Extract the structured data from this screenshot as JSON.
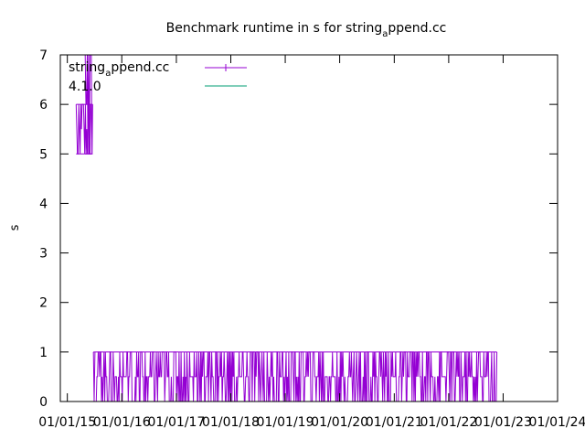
{
  "chart_data": {
    "type": "line",
    "title": "Benchmark runtime in s for string_append.cc",
    "ylabel": "s",
    "xlabel": "",
    "ylim": [
      0,
      7
    ],
    "xlim": [
      "2014-11-15",
      "2024-01-01"
    ],
    "xtick_labels": [
      "01/01/15",
      "01/01/16",
      "01/01/17",
      "01/01/18",
      "01/01/19",
      "01/01/20",
      "01/01/21",
      "01/01/22",
      "01/01/23",
      "01/01/24"
    ],
    "xtick_dates": [
      "2015-01-01",
      "2016-01-01",
      "2017-01-01",
      "2018-01-01",
      "2019-01-01",
      "2020-01-01",
      "2021-01-01",
      "2022-01-01",
      "2023-01-01",
      "2024-01-01"
    ],
    "ytick_labels": [
      "0",
      "1",
      "2",
      "3",
      "4",
      "5",
      "6",
      "7"
    ],
    "grid": false,
    "legend_position": "top-left",
    "series": [
      {
        "name": "string_append.cc",
        "color": "#9400d3",
        "style": "impulse lines with point markers",
        "segments": [
          {
            "x_start": "2015-03-01",
            "x_end": "2015-06-20",
            "y_values": [
              5.0,
              6.0,
              5.5,
              6.0
            ]
          },
          {
            "x_start": "2015-05-01",
            "x_end": "2015-06-15",
            "y_values": [
              7.0,
              6.0,
              5.0
            ]
          },
          {
            "x_start": "2015-06-25",
            "x_end": "2015-07-05",
            "y_values": [
              0.0,
              1.0
            ]
          },
          {
            "x_start": "2015-07-05",
            "x_end": "2022-11-20",
            "y_values": [
              0.0,
              0.5,
              1.0
            ]
          }
        ]
      },
      {
        "name": "4.1.0",
        "color": "#009e73",
        "style": "line",
        "segments": [
          {
            "x_start": "2015-06-25",
            "x_end": "2022-11-20",
            "y_values": [
              0.0
            ]
          }
        ]
      }
    ]
  }
}
